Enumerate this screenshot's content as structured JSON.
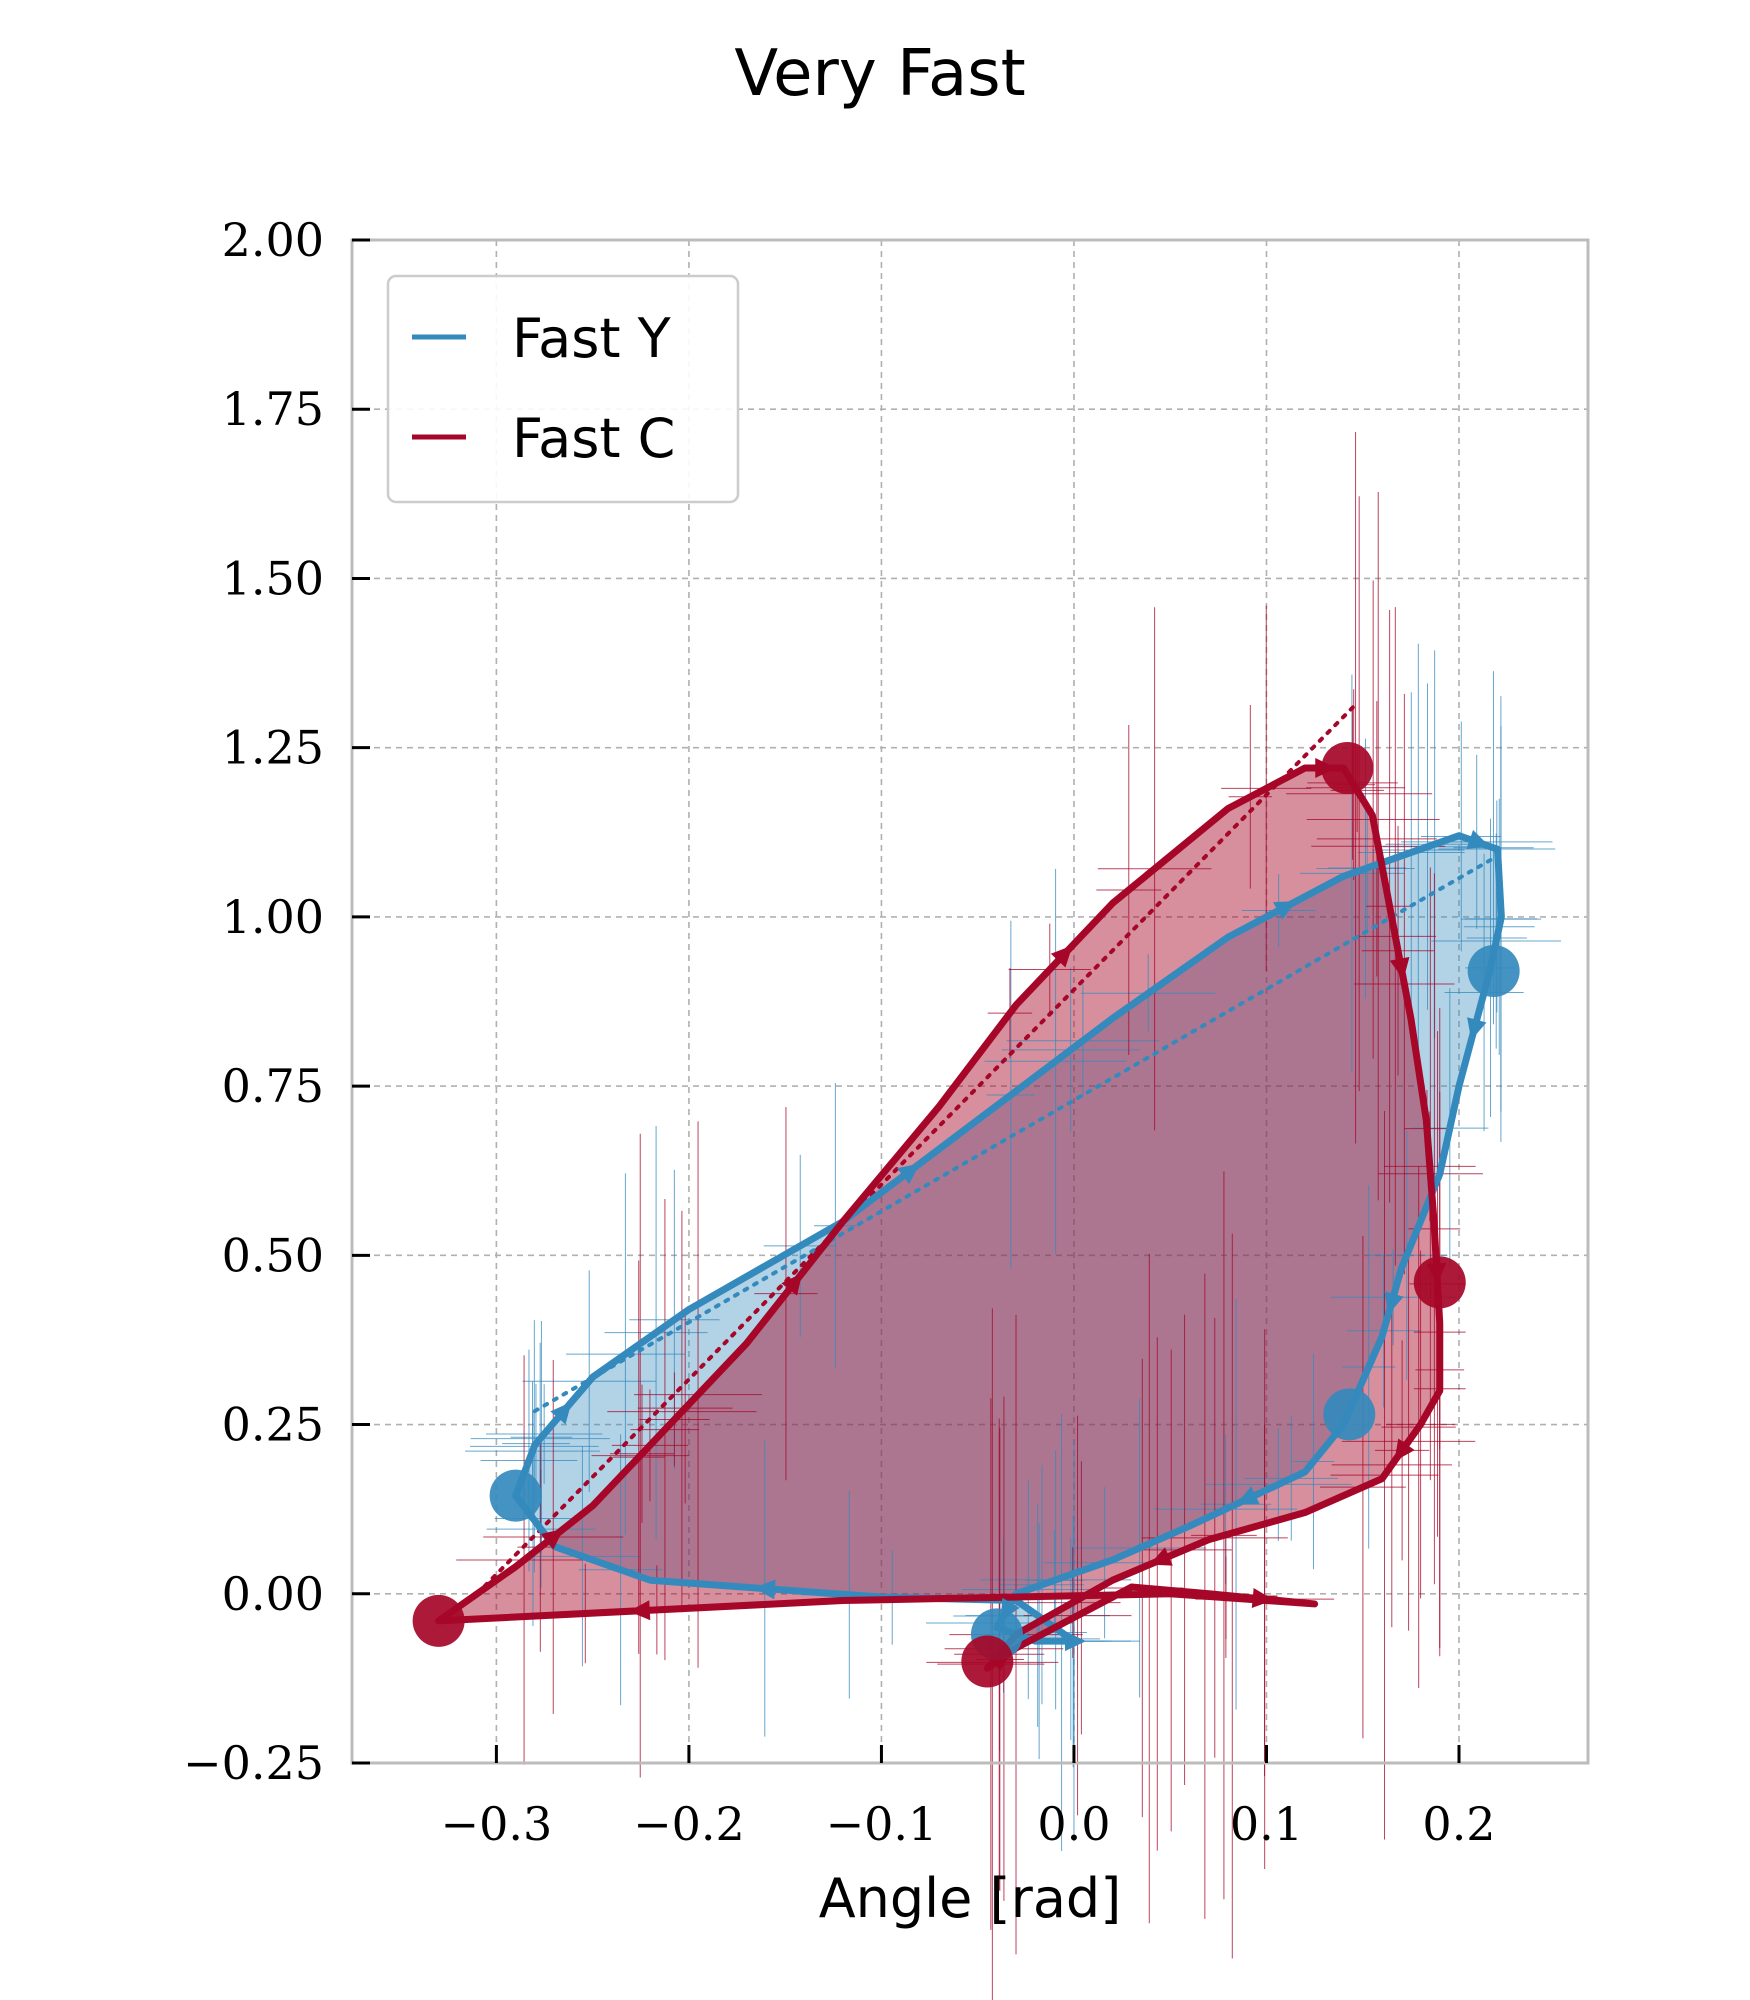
{
  "chart_data": {
    "type": "line",
    "title": "Very Fast",
    "xlabel": "Angle [rad]",
    "ylabel": "",
    "xlim": [
      -0.375,
      0.267
    ],
    "ylim": [
      -0.25,
      2.0
    ],
    "xticks": [
      -0.3,
      -0.2,
      -0.1,
      0.0,
      0.1,
      0.2
    ],
    "xtick_labels": [
      "−0.3",
      "−0.2",
      "−0.1",
      "0.0",
      "0.1",
      "0.2"
    ],
    "yticks": [
      -0.25,
      0.0,
      0.25,
      0.5,
      0.75,
      1.0,
      1.25,
      1.5,
      1.75,
      2.0
    ],
    "ytick_labels": [
      "−0.25",
      "0.00",
      "0.25",
      "0.50",
      "0.75",
      "1.00",
      "1.25",
      "1.50",
      "1.75",
      "2.00"
    ],
    "grid": true,
    "legend_position": "top-left",
    "series": [
      {
        "name": "Fast Y",
        "color": "#348ABD",
        "x": [
          -0.29,
          -0.28,
          -0.25,
          -0.2,
          -0.12,
          -0.05,
          0.02,
          0.08,
          0.14,
          0.18,
          0.2,
          0.22,
          0.222,
          0.216,
          0.2,
          0.19,
          0.17,
          0.16,
          0.14,
          0.12,
          0.06,
          0.02,
          -0.03,
          -0.04,
          -0.02,
          0.0,
          0.0,
          -0.03,
          -0.1,
          -0.22,
          -0.27,
          -0.29
        ],
        "y": [
          0.145,
          0.22,
          0.32,
          0.42,
          0.55,
          0.7,
          0.85,
          0.97,
          1.06,
          1.1,
          1.12,
          1.1,
          1.0,
          0.92,
          0.75,
          0.62,
          0.48,
          0.38,
          0.25,
          0.18,
          0.1,
          0.05,
          0.0,
          -0.05,
          -0.07,
          -0.07,
          -0.07,
          -0.01,
          -0.005,
          0.02,
          0.07,
          0.145
        ],
        "markers": [
          {
            "x": 0.218,
            "y": 0.92
          },
          {
            "x": -0.29,
            "y": 0.145
          },
          {
            "x": 0.143,
            "y": 0.265
          },
          {
            "x": -0.04,
            "y": -0.06
          }
        ],
        "mean_direction": {
          "x": [
            -0.28,
            0.22
          ],
          "y": [
            0.27,
            1.09
          ]
        }
      },
      {
        "name": "Fast C",
        "color": "#A60628",
        "x": [
          -0.33,
          -0.29,
          -0.25,
          -0.22,
          -0.17,
          -0.12,
          -0.07,
          -0.03,
          0.02,
          0.08,
          0.12,
          0.14,
          0.155,
          0.165,
          0.175,
          0.183,
          0.187,
          0.19,
          0.19,
          0.18,
          0.16,
          0.12,
          0.07,
          0.02,
          -0.03,
          -0.045,
          -0.03,
          0.03,
          0.07,
          0.125,
          0.05,
          -0.12,
          -0.33
        ],
        "y": [
          -0.04,
          0.04,
          0.13,
          0.22,
          0.37,
          0.55,
          0.72,
          0.87,
          1.02,
          1.16,
          1.22,
          1.22,
          1.15,
          1.0,
          0.85,
          0.7,
          0.55,
          0.4,
          0.3,
          0.25,
          0.17,
          0.12,
          0.08,
          0.02,
          -0.06,
          -0.11,
          -0.08,
          0.01,
          0.0,
          -0.015,
          0.0,
          -0.01,
          -0.04
        ],
        "markers": [
          {
            "x": -0.33,
            "y": -0.04
          },
          {
            "x": 0.142,
            "y": 1.22
          },
          {
            "x": 0.19,
            "y": 0.46
          },
          {
            "x": -0.045,
            "y": -0.1
          }
        ],
        "mean_direction": {
          "x": [
            -0.31,
            0.145
          ],
          "y": [
            0.0,
            1.31
          ]
        }
      }
    ]
  }
}
